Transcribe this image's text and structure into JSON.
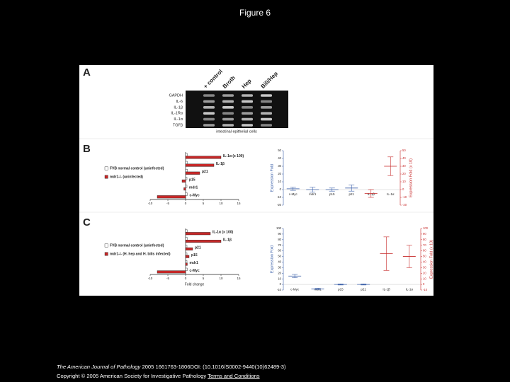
{
  "title": "Figure 6",
  "figure": {
    "panel_a": {
      "label": "A",
      "lanes": [
        "+ control",
        "Broth",
        "Hep",
        "Bili/Hep"
      ],
      "rows": [
        "GAPDH",
        "IL-6",
        "IL-1β",
        "IL-1Rα",
        "IL-1α",
        "TGFβ"
      ],
      "caption": "intestinal epithelial cells"
    },
    "panel_b": {
      "label": "B",
      "bar_chart": {
        "type": "bar",
        "categories": [
          "IL-1α (x 100)",
          "IL-1β",
          "p21",
          "p15",
          "mdr1",
          "c-Myc"
        ],
        "series": [
          {
            "name": "FVB normal control (uninfected)",
            "color": "#ffffff",
            "values": [
              0.5,
              0.5,
              0.5,
              0.4,
              0.4,
              0.5
            ]
          },
          {
            "name": "mdr1-/- (uninfected)",
            "color": "#c62828",
            "values": [
              10,
              8,
              4,
              -1,
              -0.5,
              -8
            ]
          }
        ],
        "xlim": [
          -10,
          15
        ],
        "xticks": [
          -10,
          -5,
          0,
          5,
          10,
          15
        ]
      },
      "error_chart": {
        "type": "error",
        "categories": [
          "c-Myc",
          "mdr1",
          "p15",
          "p21",
          "IL-1β",
          "IL-1α"
        ],
        "ylabel": "Expression Fold",
        "y2label": "Expression Fold (x 10)",
        "series": [
          {
            "color": "#3a5fa8",
            "values": [
              1,
              0,
              0,
              2,
              null,
              null
            ],
            "errors": [
              2,
              3,
              2,
              4,
              null,
              null
            ]
          },
          {
            "color": "#c62828",
            "axis": "y2",
            "values": [
              null,
              null,
              null,
              null,
              -5,
              30
            ],
            "errors": [
              null,
              null,
              null,
              null,
              5,
              12
            ]
          }
        ],
        "ylim": [
          -20,
          50
        ],
        "yticks": [
          -20,
          -10,
          0,
          10,
          20,
          30,
          40,
          50
        ],
        "y2lim": [
          -20,
          50
        ],
        "y2ticks": [
          -20,
          -10,
          0,
          10,
          20,
          30,
          40,
          50
        ]
      }
    },
    "panel_c": {
      "label": "C",
      "bar_chart": {
        "type": "bar",
        "categories": [
          "IL-1α (x 100)",
          "IL-1β",
          "p21",
          "p15",
          "mdr1",
          "c-Myc"
        ],
        "series": [
          {
            "name": "FVB normal control (uninfected)",
            "color": "#ffffff",
            "values": [
              0.5,
              0.5,
              0.4,
              0.4,
              0.4,
              0.5
            ]
          },
          {
            "name": "mdr1-/- (H. hep and H. bilis infected)",
            "color": "#c62828",
            "values": [
              7,
              10,
              2,
              1,
              0.5,
              -8
            ]
          }
        ],
        "xlim": [
          -10,
          15
        ],
        "xticks": [
          -10,
          -5,
          0,
          5,
          10,
          15
        ],
        "xlabel": "Fold change"
      },
      "error_chart": {
        "type": "error",
        "categories": [
          "c-Myc",
          "mdr1",
          "p15",
          "p21",
          "IL-1β",
          "IL-1α"
        ],
        "ylabel": "Expression Fold",
        "y2label": "Expression Fold (x 10)",
        "series": [
          {
            "color": "#3a5fa8",
            "values": [
              15,
              -8,
              0,
              0,
              null,
              null
            ],
            "errors": [
              3,
              1,
              1,
              1,
              null,
              null
            ]
          },
          {
            "color": "#c62828",
            "axis": "y2",
            "values": [
              null,
              null,
              null,
              null,
              55,
              50
            ],
            "errors": [
              null,
              null,
              null,
              null,
              30,
              20
            ]
          }
        ],
        "ylim": [
          -10,
          100
        ],
        "yticks": [
          -10,
          0,
          10,
          20,
          30,
          40,
          50,
          60,
          70,
          80,
          90,
          100
        ],
        "y2lim": [
          -10,
          100
        ],
        "y2ticks": [
          -10,
          0,
          10,
          20,
          30,
          40,
          50,
          60,
          70,
          80,
          90,
          100
        ]
      }
    }
  },
  "footer": {
    "journal": "The American Journal of Pathology",
    "citation": "2005 1661763-1806DOI: (10.1016/S0002-9440(10)62489-3)",
    "copyright": "Copyright © 2005 American Society for Investigative Pathology",
    "link": "Terms and Conditions"
  }
}
